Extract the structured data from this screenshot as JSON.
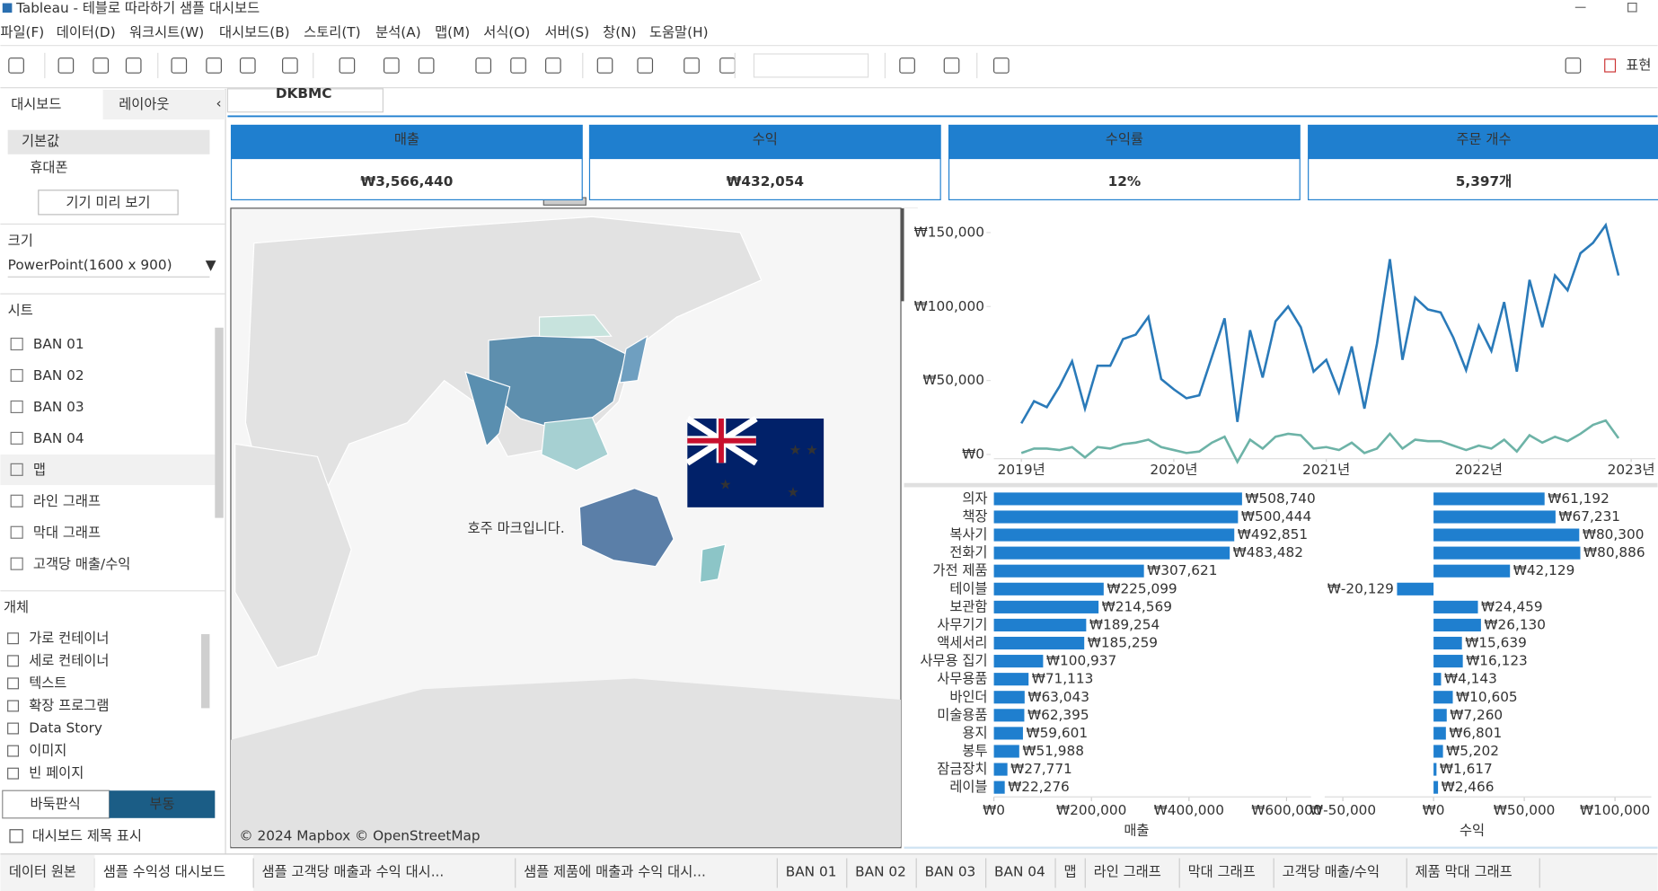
{
  "window": {
    "title": "Tableau - 테블로 따라하기 샘플 대시보드"
  },
  "menu": [
    "파일(F)",
    "데이터(D)",
    "워크시트(W)",
    "대시보드(B)",
    "스토리(T)",
    "분석(A)",
    "맵(M)",
    "서식(O)",
    "서버(S)",
    "창(N)",
    "도움말(H)"
  ],
  "toolbar": {
    "present_label": "표현"
  },
  "sidebar": {
    "tabs": [
      "대시보드",
      "레이아웃"
    ],
    "devices": [
      "기본값",
      "휴대폰"
    ],
    "preview_button": "기기 미리 보기",
    "size_title": "크기",
    "size_value": "PowerPoint(1600 x 900)",
    "sheets_title": "시트",
    "sheets": [
      "BAN 01",
      "BAN 02",
      "BAN 03",
      "BAN 04",
      "맵",
      "라인 그래프",
      "막대 그래프",
      "고객당 매출/수익"
    ],
    "objects_title": "개체",
    "objects": [
      "가로 컨테이너",
      "세로 컨테이너",
      "텍스트",
      "확장 프로그램",
      "Data Story",
      "이미지",
      "빈 페이지"
    ],
    "layout_modes": [
      "바둑판식",
      "부동"
    ],
    "show_title_checkbox": "대시보드 제목 표시"
  },
  "dashboard": {
    "header_text": "DKBMC",
    "kpis": [
      {
        "label": "매출",
        "value": "₩3,566,440"
      },
      {
        "label": "수익",
        "value": "₩432,054"
      },
      {
        "label": "수익률",
        "value": "12%"
      },
      {
        "label": "주문 개수",
        "value": "5,397개"
      }
    ],
    "map": {
      "annotation": "호주 마크입니다.",
      "attribution": "© 2024 Mapbox © OpenStreetMap"
    },
    "line_chart": {
      "type": "line",
      "x": [
        2019,
        2019.083,
        2019.167,
        2019.25,
        2019.333,
        2019.417,
        2019.5,
        2019.583,
        2019.667,
        2019.75,
        2019.833,
        2019.917,
        2020,
        2020.083,
        2020.167,
        2020.25,
        2020.333,
        2020.417,
        2020.5,
        2020.583,
        2020.667,
        2020.75,
        2020.833,
        2020.917,
        2021,
        2021.083,
        2021.167,
        2021.25,
        2021.333,
        2021.417,
        2021.5,
        2021.583,
        2021.667,
        2021.75,
        2021.833,
        2021.917,
        2022,
        2022.083,
        2022.167,
        2022.25,
        2022.333,
        2022.417,
        2022.5,
        2022.583,
        2022.667,
        2022.75,
        2022.833,
        2022.917
      ],
      "series": [
        {
          "color": "#2a7ab9",
          "values": [
            21000,
            36000,
            32000,
            46000,
            63000,
            31000,
            60000,
            60000,
            78000,
            81000,
            93000,
            51000,
            44000,
            38000,
            40000,
            66000,
            92000,
            22000,
            84000,
            52000,
            90000,
            100000,
            86000,
            56000,
            64000,
            42000,
            73000,
            31000,
            75000,
            132000,
            64000,
            106000,
            98000,
            96000,
            79000,
            57000,
            87000,
            70000,
            103000,
            56000,
            118000,
            86000,
            121000,
            111000,
            136000,
            143000,
            155000,
            121000
          ]
        },
        {
          "color": "#6db3a7",
          "values": [
            1000,
            4000,
            4000,
            3000,
            5000,
            -2000,
            5000,
            4000,
            7000,
            8000,
            10000,
            5000,
            3000,
            1000,
            2000,
            8000,
            12000,
            -5000,
            10000,
            4000,
            12000,
            14000,
            13000,
            4000,
            5000,
            3000,
            8000,
            1000,
            4000,
            14000,
            4000,
            10000,
            9000,
            9000,
            6000,
            3000,
            6000,
            4000,
            10000,
            2000,
            13000,
            8000,
            12000,
            9000,
            14000,
            20000,
            23000,
            11000
          ]
        }
      ],
      "xlim": [
        2019,
        2023
      ],
      "xticks": [
        {
          "value": 2019,
          "label": "2019년"
        },
        {
          "value": 2020,
          "label": "2020년"
        },
        {
          "value": 2021,
          "label": "2021년"
        },
        {
          "value": 2022,
          "label": "2022년"
        },
        {
          "value": 2023,
          "label": "2023년"
        }
      ],
      "ylim": [
        -10000,
        160000
      ],
      "yticks": [
        {
          "value": 0,
          "label": "₩0"
        },
        {
          "value": 50000,
          "label": "₩50,000"
        },
        {
          "value": 100000,
          "label": "₩100,000"
        },
        {
          "value": 150000,
          "label": "₩150,000"
        }
      ]
    },
    "bar_chart": {
      "type": "bar",
      "orientation": "horizontal",
      "categories": [
        "의자",
        "책장",
        "복사기",
        "전화기",
        "가전 제품",
        "테이블",
        "보관함",
        "사무기기",
        "액세서리",
        "사무용 집기",
        "사무용품",
        "바인더",
        "미술용품",
        "용지",
        "봉투",
        "잠금장치",
        "레이블"
      ],
      "panels": [
        {
          "axis_title": "매출",
          "color": "#1f7fcf",
          "values": [
            508740,
            500444,
            492851,
            483482,
            307621,
            225099,
            214569,
            189254,
            185259,
            100937,
            71113,
            63043,
            62395,
            59601,
            51988,
            27771,
            22276
          ],
          "value_labels": [
            "₩508,740",
            "₩500,444",
            "₩492,851",
            "₩483,482",
            "₩307,621",
            "₩225,099",
            "₩214,569",
            "₩189,254",
            "₩185,259",
            "₩100,937",
            "₩71,113",
            "₩63,043",
            "₩62,395",
            "₩59,601",
            "₩51,988",
            "₩27,771",
            "₩22,276"
          ],
          "xlim": [
            0,
            650000
          ],
          "xticks": [
            {
              "value": 0,
              "label": "₩0"
            },
            {
              "value": 200000,
              "label": "₩200,000"
            },
            {
              "value": 400000,
              "label": "₩400,000"
            },
            {
              "value": 600000,
              "label": "₩600,000"
            }
          ]
        },
        {
          "axis_title": "수익",
          "color": "#1f7fcf",
          "values": [
            61192,
            67231,
            80300,
            80886,
            42129,
            -20129,
            24459,
            26130,
            15639,
            16123,
            4143,
            10605,
            7260,
            6801,
            5202,
            1617,
            2466
          ],
          "value_labels": [
            "₩61,192",
            "₩67,231",
            "₩80,300",
            "₩80,886",
            "₩42,129",
            "₩-20,129",
            "₩24,459",
            "₩26,130",
            "₩15,639",
            "₩16,123",
            "₩4,143",
            "₩10,605",
            "₩7,260",
            "₩6,801",
            "₩5,202",
            "₩1,617",
            "₩2,466"
          ],
          "xlim": [
            -60000,
            120000
          ],
          "xticks": [
            {
              "value": -50000,
              "label": "₩-50,000"
            },
            {
              "value": 0,
              "label": "₩0"
            },
            {
              "value": 50000,
              "label": "₩50,000"
            },
            {
              "value": 100000,
              "label": "₩100,000"
            }
          ]
        }
      ]
    }
  },
  "sheet_tabs": [
    "데이터 원본",
    "샘플 수익성 대시보드",
    "샘플 고객당 매출과 수익 대시...",
    "샘플 제품에 매출과 수익 대시...",
    "BAN 01",
    "BAN 02",
    "BAN 03",
    "BAN 04",
    "맵",
    "라인 그래프",
    "막대 그래프",
    "고객당 매출/수익",
    "제품 막대 그래프"
  ]
}
